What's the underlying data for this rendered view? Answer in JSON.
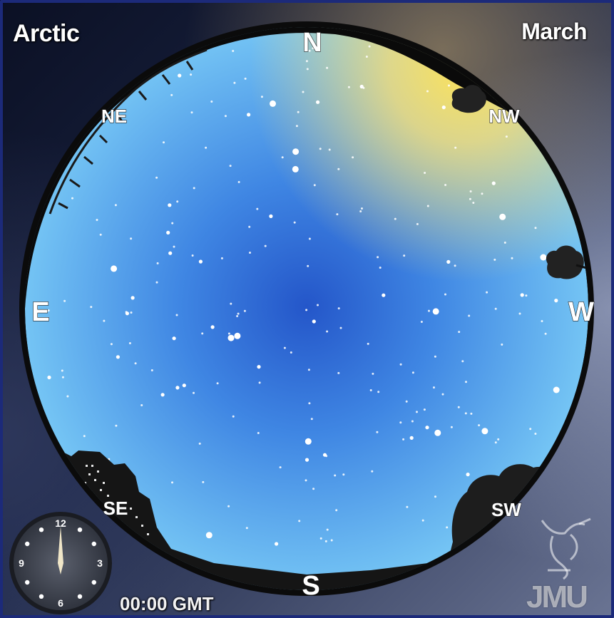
{
  "location": "Arctic",
  "month": "March",
  "time": "00:00 GMT",
  "compass": {
    "N": "N",
    "NE": "NE",
    "E": "E",
    "SE": "SE",
    "S": "S",
    "SW": "SW",
    "W": "W",
    "NW": "NW"
  },
  "clock": {
    "numbers": [
      "12",
      "3",
      "6",
      "9"
    ],
    "hour_hand_hour": 0
  },
  "logo": {
    "text": "JMU",
    "icon": "liver-bird-icon"
  },
  "colors": {
    "sky_center": "#2a5fd0",
    "sky_edge": "#6fc1f5",
    "twilight_glow": "#f6dc66",
    "horizon_silhouette": "#0a0a0a"
  }
}
